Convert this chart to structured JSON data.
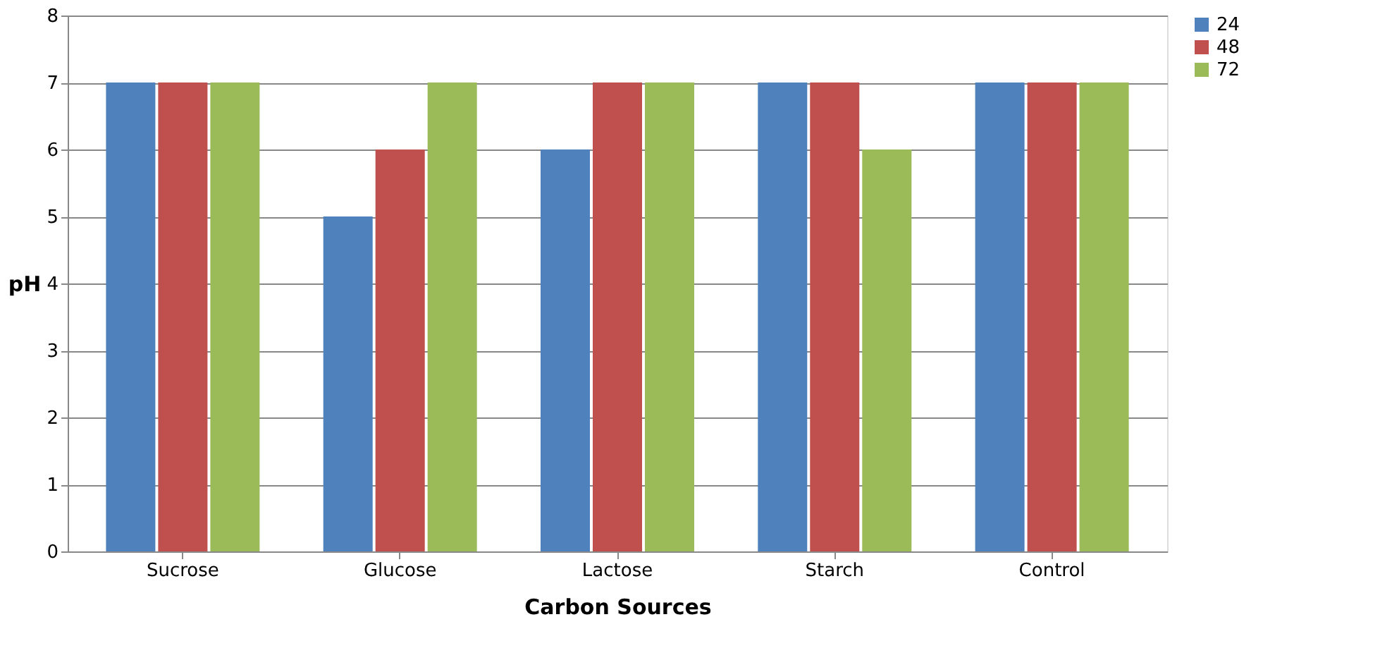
{
  "chart_data": {
    "type": "bar",
    "xlabel": "Carbon  Sources",
    "ylabel": "pH",
    "categories": [
      "Sucrose",
      "Glucose",
      "Lactose",
      "Starch",
      "Control"
    ],
    "series": [
      {
        "name": "24",
        "color": "#4f81bd",
        "values": [
          7,
          5,
          6,
          7,
          7
        ]
      },
      {
        "name": "48",
        "color": "#c0504d",
        "values": [
          7,
          6,
          7,
          7,
          7
        ]
      },
      {
        "name": "72",
        "color": "#9bbb59",
        "values": [
          7,
          7,
          7,
          6,
          7
        ]
      }
    ],
    "ylim": [
      0,
      8
    ],
    "yticks": [
      0,
      1,
      2,
      3,
      4,
      5,
      6,
      7,
      8
    ],
    "grid": "y",
    "legend": "right"
  }
}
